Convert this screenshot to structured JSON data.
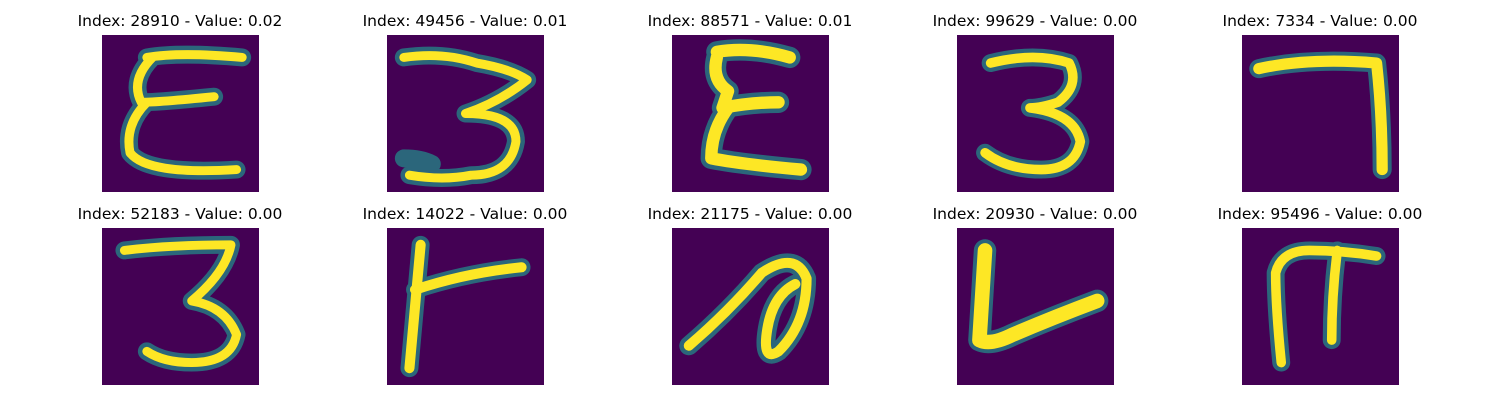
{
  "panels": [
    {
      "title": "Index: 28910 - Value: 0.02",
      "glyph": "epsilon-like-stroke"
    },
    {
      "title": "Index: 49456 - Value: 0.01",
      "glyph": "three-like-stroke"
    },
    {
      "title": "Index: 88571 - Value: 0.01",
      "glyph": "sigma-like-stroke"
    },
    {
      "title": "Index: 99629 - Value: 0.00",
      "glyph": "three-stroke"
    },
    {
      "title": "Index: 7334 - Value: 0.00",
      "glyph": "seven-like-stroke"
    },
    {
      "title": "Index: 52183 - Value: 0.00",
      "glyph": "three-stroke"
    },
    {
      "title": "Index: 14022 - Value: 0.00",
      "glyph": "t-like-stroke"
    },
    {
      "title": "Index: 21175 - Value: 0.00",
      "glyph": "loop-stroke"
    },
    {
      "title": "Index: 20930 - Value: 0.00",
      "glyph": "l-like-stroke"
    },
    {
      "title": "Index: 95496 - Value: 0.00",
      "glyph": "pi-like-stroke"
    }
  ],
  "colors": {
    "background": "#440154",
    "stroke": "#fde725",
    "edge": "#35b779",
    "halo": "#21918c"
  }
}
